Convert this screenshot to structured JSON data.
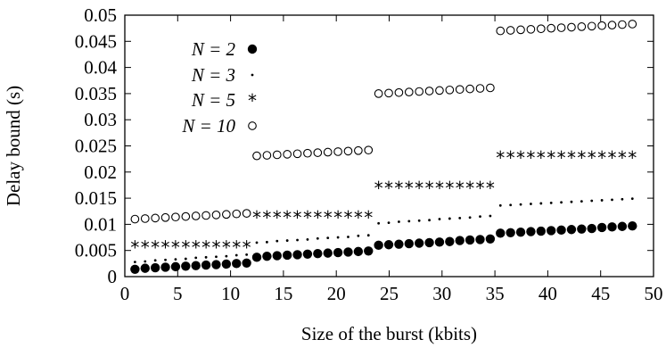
{
  "chart_data": {
    "type": "scatter",
    "title": "",
    "xlabel": "Size of the burst (kbits)",
    "ylabel": "Delay bound (s)",
    "xlim": [
      0,
      50
    ],
    "ylim": [
      0,
      0.05
    ],
    "xticks": [
      "0",
      "5",
      "10",
      "15",
      "20",
      "25",
      "30",
      "35",
      "40",
      "45",
      "50"
    ],
    "yticks": [
      "0",
      "0.005",
      "0.01",
      "0.015",
      "0.02",
      "0.025",
      "0.03",
      "0.035",
      "0.04",
      "0.045",
      "0.05"
    ],
    "grid": false,
    "legend_position": "top-left",
    "x": [
      0.96,
      1.92,
      2.88,
      3.84,
      4.8,
      5.76,
      6.72,
      7.68,
      8.64,
      9.6,
      10.56,
      11.52,
      12.48,
      13.44,
      14.4,
      15.36,
      16.32,
      17.28,
      18.24,
      19.2,
      20.16,
      21.12,
      22.08,
      23.04,
      24.0,
      24.96,
      25.92,
      26.88,
      27.84,
      28.8,
      29.76,
      30.72,
      31.68,
      32.64,
      33.6,
      34.56,
      35.52,
      36.48,
      37.44,
      38.4,
      39.36,
      40.32,
      41.28,
      42.24,
      43.2,
      44.16,
      45.12,
      46.08,
      47.04,
      48.0
    ],
    "series": [
      {
        "name": "N = 2",
        "marker": "filled-circle",
        "values": [
          0.0014,
          0.0016,
          0.0017,
          0.0018,
          0.0019,
          0.002,
          0.0021,
          0.0022,
          0.0023,
          0.0024,
          0.0025,
          0.0026,
          0.0037,
          0.0039,
          0.004,
          0.0041,
          0.0042,
          0.0043,
          0.0044,
          0.0045,
          0.0046,
          0.0047,
          0.0048,
          0.0049,
          0.006,
          0.0061,
          0.0062,
          0.0063,
          0.0064,
          0.0065,
          0.0066,
          0.0067,
          0.0069,
          0.007,
          0.0071,
          0.0072,
          0.0083,
          0.0084,
          0.0085,
          0.0086,
          0.0087,
          0.0088,
          0.0089,
          0.009,
          0.0091,
          0.0092,
          0.0094,
          0.0095,
          0.0096,
          0.0097
        ]
      },
      {
        "name": "N = 3",
        "marker": "dot",
        "values": [
          0.0028,
          0.0029,
          0.0031,
          0.0032,
          0.0033,
          0.0034,
          0.0036,
          0.0037,
          0.0038,
          0.0039,
          0.0041,
          0.0042,
          0.0065,
          0.0066,
          0.0068,
          0.0069,
          0.007,
          0.0071,
          0.0073,
          0.0074,
          0.0075,
          0.0076,
          0.0078,
          0.0079,
          0.0102,
          0.0103,
          0.0105,
          0.0106,
          0.0107,
          0.0108,
          0.011,
          0.0111,
          0.0112,
          0.0113,
          0.0115,
          0.0116,
          0.0136,
          0.0137,
          0.0138,
          0.0139,
          0.014,
          0.0141,
          0.0142,
          0.0143,
          0.0144,
          0.0145,
          0.0146,
          0.0147,
          0.0148,
          0.0149
        ]
      },
      {
        "name": "N = 5",
        "marker": "asterisk",
        "values": [
          0.0057,
          0.0057,
          0.0057,
          0.0057,
          0.0057,
          0.0057,
          0.0057,
          0.0057,
          0.0057,
          0.0057,
          0.0057,
          0.0057,
          0.0114,
          0.0114,
          0.0114,
          0.0114,
          0.0114,
          0.0114,
          0.0114,
          0.0114,
          0.0114,
          0.0114,
          0.0114,
          0.0114,
          0.0171,
          0.0171,
          0.0171,
          0.0171,
          0.0171,
          0.0171,
          0.0171,
          0.0171,
          0.0171,
          0.0171,
          0.0171,
          0.0171,
          0.0229,
          0.0229,
          0.0229,
          0.0229,
          0.0229,
          0.0229,
          0.0229,
          0.0229,
          0.0229,
          0.0229,
          0.0229,
          0.0229,
          0.0229,
          0.0229
        ]
      },
      {
        "name": "N = 10",
        "marker": "open-circle",
        "values": [
          0.011,
          0.0111,
          0.0112,
          0.0113,
          0.0114,
          0.0115,
          0.0116,
          0.0117,
          0.0118,
          0.0119,
          0.012,
          0.0121,
          0.0231,
          0.0232,
          0.0233,
          0.0234,
          0.0235,
          0.0236,
          0.0237,
          0.0238,
          0.0239,
          0.024,
          0.0241,
          0.0242,
          0.035,
          0.0351,
          0.0352,
          0.0353,
          0.0354,
          0.0355,
          0.0356,
          0.0357,
          0.0358,
          0.0359,
          0.036,
          0.0361,
          0.047,
          0.0471,
          0.0472,
          0.0473,
          0.0474,
          0.0475,
          0.0476,
          0.0477,
          0.0478,
          0.0479,
          0.048,
          0.0481,
          0.0482,
          0.0483
        ]
      }
    ]
  }
}
